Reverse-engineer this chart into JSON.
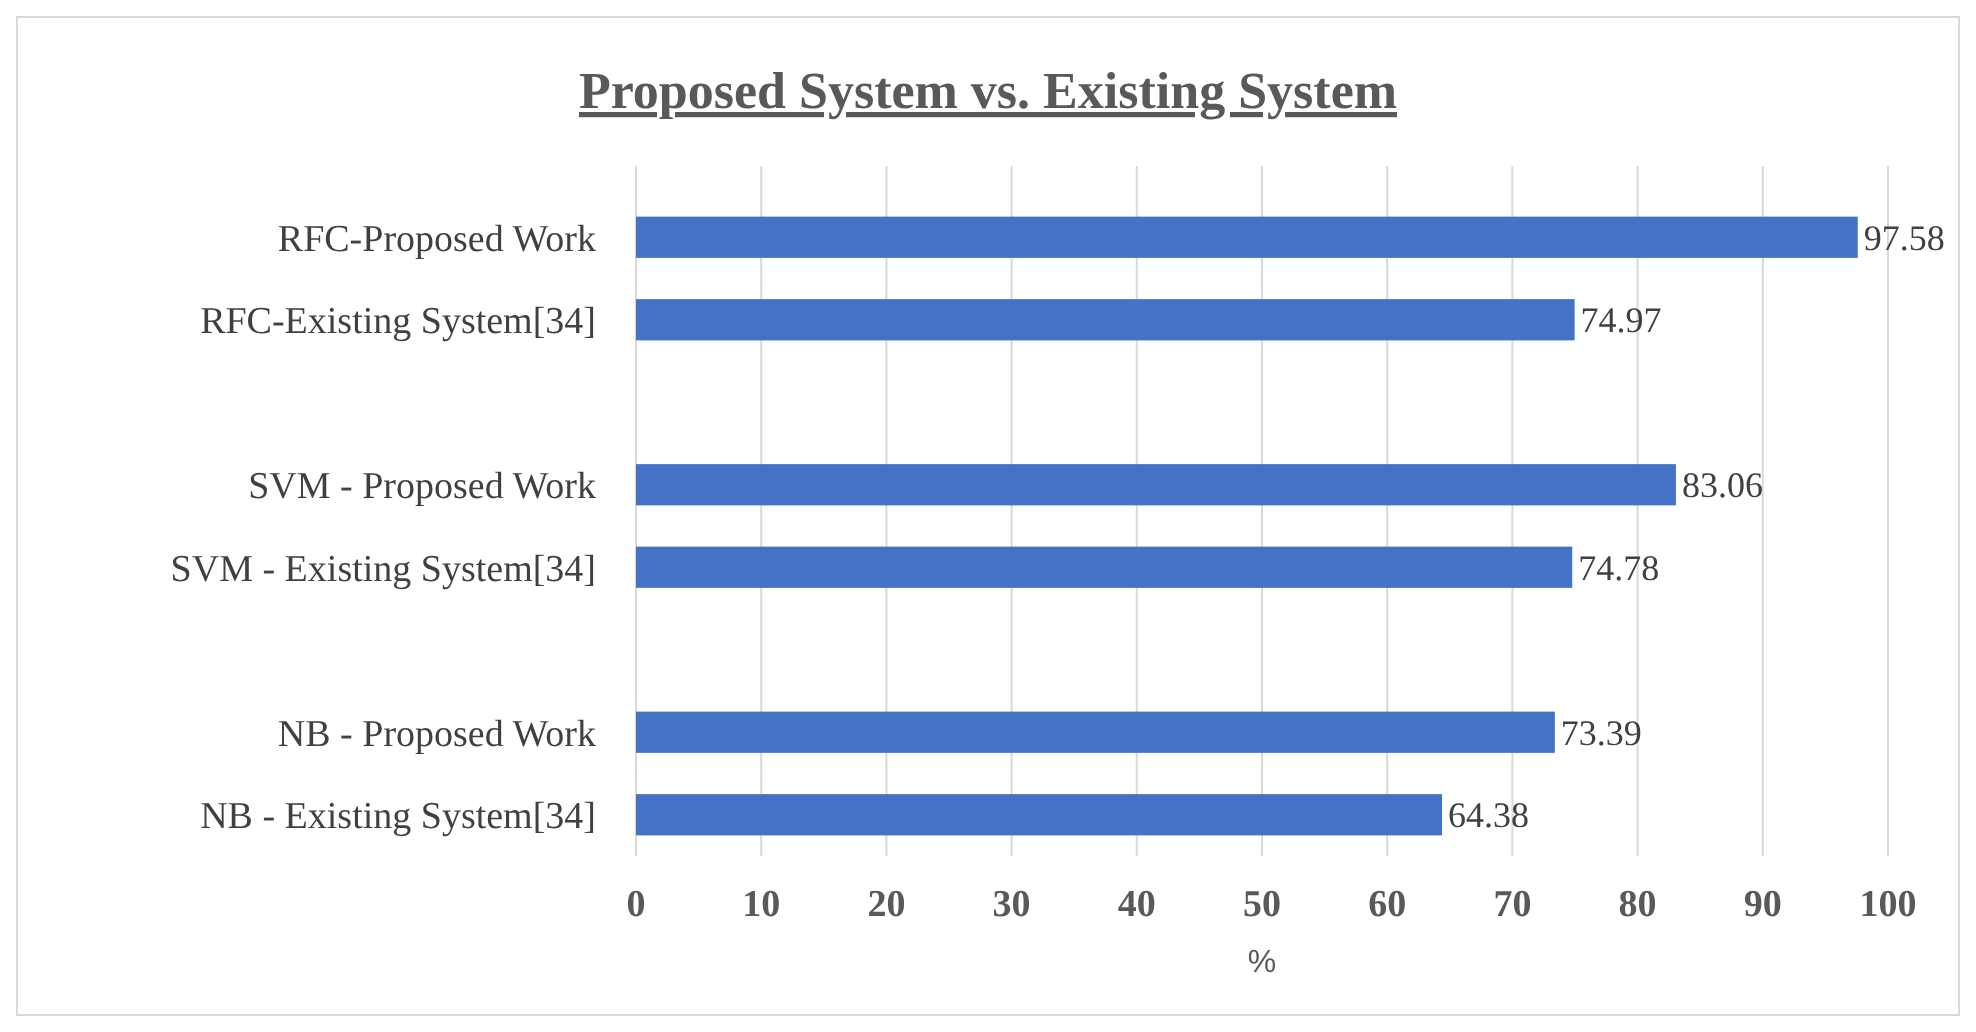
{
  "chart_data": {
    "type": "bar",
    "orientation": "horizontal",
    "title": "Proposed System vs. Existing System",
    "xlabel": "%",
    "categories": [
      "RFC-Proposed Work",
      "RFC-Existing System[34]",
      null,
      "SVM - Proposed Work",
      "SVM - Existing System[34]",
      null,
      "NB - Proposed Work",
      "NB - Existing System[34]"
    ],
    "values": [
      97.58,
      74.97,
      null,
      83.06,
      74.78,
      null,
      73.39,
      64.38
    ],
    "color": "#4472c4",
    "xlim": [
      0,
      100
    ],
    "xticks": [
      0,
      10,
      20,
      30,
      40,
      50,
      60,
      70,
      80,
      90,
      100
    ],
    "grid": "x",
    "data_labels": true
  }
}
